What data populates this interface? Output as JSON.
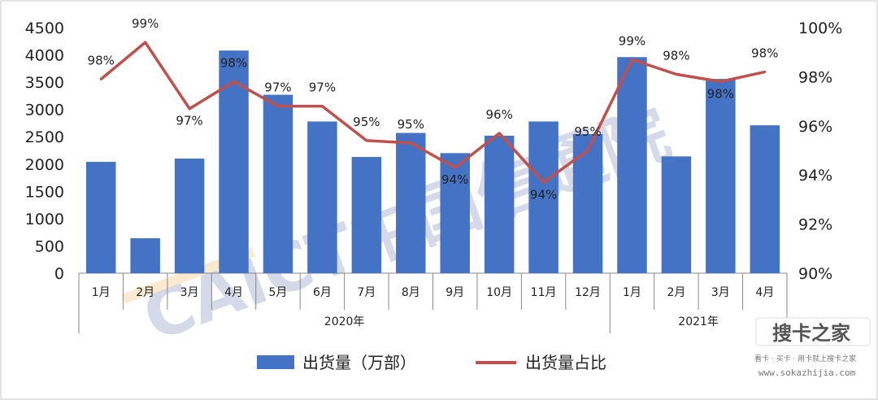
{
  "chart_data": {
    "type": "bar",
    "categories": [
      "1月",
      "2月",
      "3月",
      "4月",
      "5月",
      "6月",
      "7月",
      "8月",
      "9月",
      "10月",
      "11月",
      "12月",
      "1月",
      "2月",
      "3月",
      "4月"
    ],
    "year_groups": [
      {
        "label": "2020年",
        "count": 12
      },
      {
        "label": "2021年",
        "count": 4
      }
    ],
    "series": [
      {
        "name": "出货量（万部）",
        "type": "bar",
        "axis": "left",
        "color": "#4472C4",
        "values": [
          2040,
          640,
          2100,
          4080,
          3270,
          2780,
          2130,
          2570,
          2200,
          2520,
          2780,
          2550,
          3960,
          2140,
          3560,
          2710
        ]
      },
      {
        "name": "出货量占比",
        "type": "line",
        "axis": "right",
        "color": "#C0504D",
        "values": [
          97.9,
          99.4,
          96.7,
          97.8,
          96.8,
          96.8,
          95.4,
          95.3,
          94.3,
          95.7,
          93.7,
          95.0,
          98.7,
          98.1,
          97.8,
          98.2
        ],
        "data_labels": [
          "98%",
          "99%",
          "97%",
          "98%",
          "97%",
          "97%",
          "95%",
          "95%",
          "94%",
          "96%",
          "94%",
          "95%",
          "99%",
          "98%",
          "98%",
          "98%"
        ]
      }
    ],
    "y_left": {
      "ylim": [
        0,
        4500
      ],
      "ticks": [
        "0",
        "500",
        "1000",
        "1500",
        "2000",
        "2500",
        "3000",
        "3500",
        "4000",
        "4500"
      ]
    },
    "y_right": {
      "ylim": [
        90,
        100
      ],
      "ticks": [
        "90%",
        "92%",
        "94%",
        "96%",
        "98%",
        "100%"
      ]
    },
    "legend": {
      "position": "bottom",
      "items": [
        "出货量（万部）",
        "出货量占比"
      ]
    },
    "grid": false
  },
  "watermark": {
    "text": "CAICT中国信通院",
    "site_logo": "搜卡之家",
    "site_tagline": "看卡 · 买卡 · 用卡就上搜卡之家",
    "site_url": "www.sokazhijia.com"
  }
}
